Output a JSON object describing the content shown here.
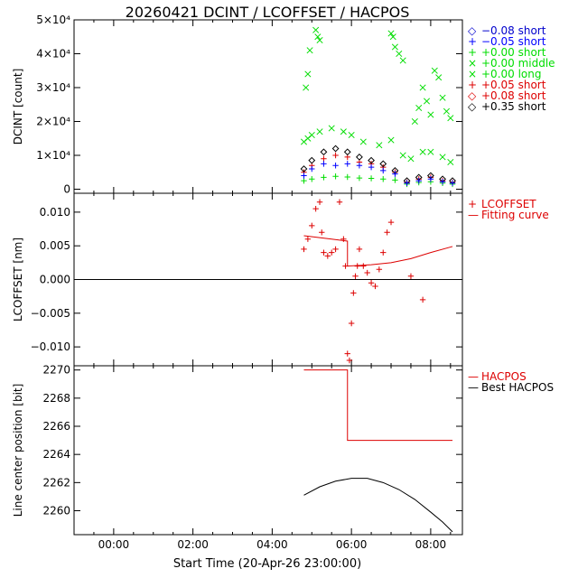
{
  "title": "20260421  DCINT  /  LCOFFSET  /  HACPOS",
  "xlabel": "Start Time (20-Apr-26 23:00:00)",
  "colors": {
    "black": "#000000",
    "blue": "#0000ff",
    "green": "#00dd00",
    "red": "#dd0000"
  },
  "chart_data": [
    {
      "type": "scatter",
      "name": "dcint",
      "ylabel": "DCINT [count]",
      "xlim": [
        -1.0,
        8.8
      ],
      "ylim": [
        -1200,
        50000
      ],
      "x_ticks": [
        {
          "v": 0,
          "label": "00:00"
        },
        {
          "v": 2,
          "label": "02:00"
        },
        {
          "v": 4,
          "label": "04:00"
        },
        {
          "v": 6,
          "label": "06:00"
        },
        {
          "v": 8,
          "label": "08:00"
        }
      ],
      "y_ticks": [
        {
          "v": 0,
          "label": "0"
        },
        {
          "v": 10000,
          "label": "1×10⁴"
        },
        {
          "v": 20000,
          "label": "2×10⁴"
        },
        {
          "v": 30000,
          "label": "3×10⁴"
        },
        {
          "v": 40000,
          "label": "4×10⁴"
        },
        {
          "v": 50000,
          "label": "5×10⁴"
        }
      ],
      "legend": [
        {
          "label": "−0.08 short",
          "marker": "◇",
          "color": "#0000cc"
        },
        {
          "label": "−0.05 short",
          "marker": "+",
          "color": "#0000ff"
        },
        {
          "label": "+0.00 short",
          "marker": "+",
          "color": "#00dd00"
        },
        {
          "label": "+0.00 middle",
          "marker": "×",
          "color": "#00dd00"
        },
        {
          "label": "+0.00 long",
          "marker": "×",
          "color": "#00dd00"
        },
        {
          "label": "+0.05 short",
          "marker": "+",
          "color": "#dd0000"
        },
        {
          "label": "+0.08 short",
          "marker": "◇",
          "color": "#dd0000"
        },
        {
          "label": "+0.35 short",
          "marker": "◇",
          "color": "#000000"
        }
      ],
      "series": [
        {
          "name": "+0.00 long",
          "color": "#00dd00",
          "marker": "x",
          "x": [
            4.85,
            4.9,
            4.95,
            5.1,
            5.15,
            5.2,
            7.0,
            7.05,
            7.1,
            7.2,
            7.3,
            7.6,
            7.7,
            7.8,
            7.9,
            8.0,
            8.1,
            8.2,
            8.3,
            8.4,
            8.5
          ],
          "y": [
            30000,
            34000,
            41000,
            47000,
            45000,
            44000,
            46000,
            45000,
            42000,
            40000,
            38000,
            20000,
            24000,
            30000,
            26000,
            22000,
            35000,
            33000,
            27000,
            23000,
            21000
          ]
        },
        {
          "name": "+0.00 middle",
          "color": "#00dd00",
          "marker": "x",
          "x": [
            4.8,
            4.9,
            5.0,
            5.2,
            5.5,
            5.8,
            6.0,
            6.3,
            6.7,
            7.0,
            7.3,
            7.5,
            7.8,
            8.0,
            8.3,
            8.5
          ],
          "y": [
            14000,
            15000,
            16000,
            17000,
            18000,
            17000,
            16000,
            14000,
            13000,
            14500,
            10000,
            9000,
            11000,
            11000,
            9500,
            8000
          ]
        },
        {
          "name": "+0.00 short",
          "color": "#00dd00",
          "marker": "+",
          "x": [
            4.8,
            5.0,
            5.3,
            5.6,
            5.9,
            6.2,
            6.5,
            6.8,
            7.1,
            7.4,
            7.7,
            8.0,
            8.3,
            8.55
          ],
          "y": [
            2500,
            3000,
            3500,
            3800,
            3600,
            3300,
            3200,
            3000,
            2700,
            1500,
            2000,
            2200,
            1800,
            1500
          ]
        },
        {
          "name": "+0.05 short",
          "color": "#dd0000",
          "marker": "+",
          "x": [
            4.8,
            5.0,
            5.3,
            5.6,
            5.9,
            6.2,
            6.5,
            6.8,
            7.1,
            7.4,
            7.7,
            8.0,
            8.3,
            8.55
          ],
          "y": [
            5000,
            7000,
            9000,
            10000,
            9500,
            8000,
            7500,
            6500,
            5000,
            2000,
            3000,
            3500,
            2500,
            2000
          ]
        },
        {
          "name": "+0.35 short",
          "color": "#000000",
          "marker": "diamond",
          "x": [
            4.8,
            5.0,
            5.3,
            5.6,
            5.9,
            6.2,
            6.5,
            6.8,
            7.1,
            7.4,
            7.7,
            8.0,
            8.3,
            8.55
          ],
          "y": [
            6000,
            8500,
            11000,
            12000,
            11000,
            9500,
            8500,
            7500,
            5500,
            2500,
            3500,
            4000,
            3000,
            2500
          ]
        },
        {
          "name": "-0.05 short",
          "color": "#0000ff",
          "marker": "+",
          "x": [
            4.8,
            5.0,
            5.3,
            5.6,
            5.9,
            6.2,
            6.5,
            6.8,
            7.1,
            7.4,
            7.7,
            8.0,
            8.3,
            8.55
          ],
          "y": [
            4000,
            6000,
            7500,
            7000,
            7500,
            7000,
            6500,
            5500,
            4500,
            1800,
            2500,
            3000,
            2200,
            1800
          ]
        }
      ]
    },
    {
      "type": "scatter",
      "name": "lcoffset",
      "ylabel": "LCOFFSET [nm]",
      "xlim": [
        -1.0,
        8.8
      ],
      "ylim": [
        -0.0128,
        0.0128
      ],
      "y_ticks": [
        {
          "v": -0.01,
          "label": "−0.010"
        },
        {
          "v": -0.005,
          "label": "−0.005"
        },
        {
          "v": 0,
          "label": "0.000"
        },
        {
          "v": 0.005,
          "label": "0.005"
        },
        {
          "v": 0.01,
          "label": "0.010"
        }
      ],
      "legend": [
        {
          "label": "LCOFFSET",
          "marker": "+",
          "color": "#dd0000"
        },
        {
          "label": "Fitting curve",
          "marker": "—",
          "color": "#dd0000"
        }
      ],
      "points": {
        "x": [
          4.8,
          4.9,
          5.0,
          5.1,
          5.2,
          5.25,
          5.3,
          5.4,
          5.5,
          5.6,
          5.7,
          5.8,
          5.85,
          5.9,
          5.95,
          6.0,
          6.05,
          6.1,
          6.15,
          6.2,
          6.3,
          6.4,
          6.5,
          6.6,
          6.7,
          6.8,
          6.9,
          7.0,
          7.5,
          7.8
        ],
        "y": [
          0.0045,
          0.006,
          0.008,
          0.0105,
          0.0115,
          0.007,
          0.004,
          0.0035,
          0.004,
          0.0045,
          0.0115,
          0.006,
          0.002,
          -0.011,
          -0.012,
          -0.0065,
          -0.002,
          0.0005,
          0.002,
          0.0045,
          0.002,
          0.001,
          -0.0005,
          -0.001,
          0.0015,
          0.004,
          0.007,
          0.0085,
          0.0005,
          -0.003
        ]
      },
      "fit": {
        "x": [
          4.8,
          5.5,
          5.9,
          5.9,
          6.5,
          7.0,
          7.5,
          8.0,
          8.55
        ],
        "y": [
          0.0065,
          0.006,
          0.0057,
          0.002,
          0.0022,
          0.0025,
          0.0031,
          0.004,
          0.0049
        ]
      }
    },
    {
      "type": "line",
      "name": "hacpos",
      "ylabel": "Line center position [bit]",
      "xlim": [
        -1.0,
        8.8
      ],
      "ylim": [
        2258.3,
        2270.3
      ],
      "y_ticks": [
        {
          "v": 2260,
          "label": "2260"
        },
        {
          "v": 2262,
          "label": "2262"
        },
        {
          "v": 2264,
          "label": "2264"
        },
        {
          "v": 2266,
          "label": "2266"
        },
        {
          "v": 2268,
          "label": "2268"
        },
        {
          "v": 2270,
          "label": "2270"
        }
      ],
      "legend": [
        {
          "label": "HACPOS",
          "marker": "—",
          "color": "#dd0000"
        },
        {
          "label": "Best HACPOS",
          "marker": "—",
          "color": "#000000"
        }
      ],
      "hacpos": {
        "x": [
          4.8,
          5.9,
          5.9,
          8.55
        ],
        "y": [
          2270,
          2270,
          2265,
          2265
        ]
      },
      "best": {
        "x": [
          4.8,
          5.2,
          5.6,
          6.0,
          6.4,
          6.8,
          7.2,
          7.6,
          8.0,
          8.3,
          8.55
        ],
        "y": [
          2261.1,
          2261.7,
          2262.1,
          2262.3,
          2262.3,
          2262.0,
          2261.5,
          2260.8,
          2259.9,
          2259.2,
          2258.5
        ]
      }
    }
  ]
}
